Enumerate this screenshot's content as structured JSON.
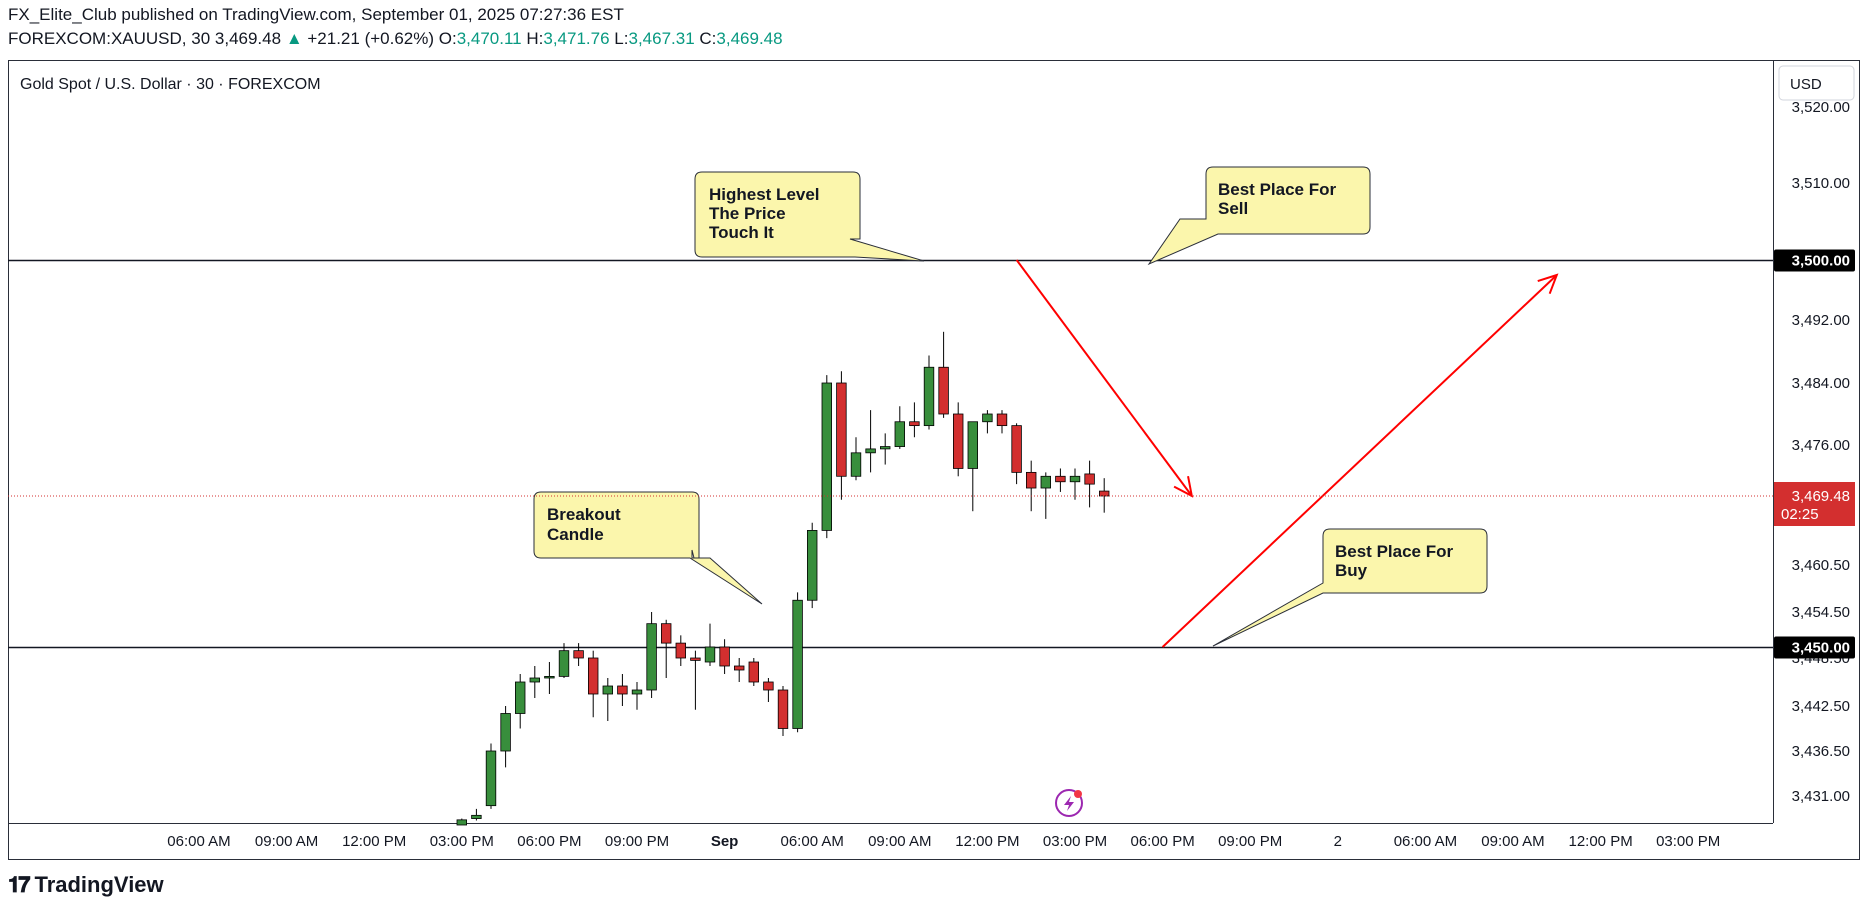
{
  "header": {
    "published_line": "FX_Elite_Club published on TradingView.com, September 01, 2025 07:27:36 EST",
    "symbol": "FOREXCOM:XAUUSD, 30",
    "last": "3,469.48",
    "change": "+21.21 (+0.62%)",
    "o_label": "O:",
    "o": "3,470.11",
    "h_label": "H:",
    "h": "3,471.76",
    "l_label": "L:",
    "l": "3,467.31",
    "c_label": "C:",
    "c": "3,469.48"
  },
  "chart_title": "Gold Spot / U.S. Dollar · 30 · FOREXCOM",
  "currency_button": "USD",
  "footer": {
    "brand": "TradingView"
  },
  "colors": {
    "up": "#388e3c",
    "down": "#d32f2f",
    "arrow": "#ff0000",
    "callout": "#fbf6ac",
    "price_tag": "#d32f2f"
  },
  "chart_data": {
    "type": "candlestick",
    "title": "Gold Spot / U.S. Dollar · 30 · FOREXCOM",
    "ylim": [
      3426.5,
      3524.5
    ],
    "y_ticks": [
      3520.0,
      3510.0,
      3492.0,
      3484.0,
      3476.0,
      3460.5,
      3454.5,
      3448.5,
      3442.5,
      3436.5,
      3431.0
    ],
    "y_tick_labels": [
      "3,520.00",
      "3,510.00",
      "3,492.00",
      "3,484.00",
      "3,476.00",
      "3,460.50",
      "3,454.50",
      "3,448.50",
      "3,442.50",
      "3,436.50",
      "3,431.00"
    ],
    "x_tick_labels": [
      "06:00 AM",
      "09:00 AM",
      "12:00 PM",
      "03:00 PM",
      "06:00 PM",
      "09:00 PM",
      "Sep",
      "06:00 AM",
      "09:00 AM",
      "12:00 PM",
      "03:00 PM",
      "06:00 PM",
      "09:00 PM",
      "2",
      "06:00 AM",
      "09:00 AM",
      "12:00 PM",
      "03:00 PM"
    ],
    "x_tick_bar_index": [
      -60,
      -54,
      -48,
      -42,
      -36,
      -30,
      -24,
      -18,
      -12,
      -6,
      0,
      6,
      12,
      18,
      24,
      30,
      36,
      42
    ],
    "candles": [
      {
        "i": -42,
        "o": 3426.5,
        "h": 3427.5,
        "l": 3426.5,
        "c": 3427.3
      },
      {
        "i": -41,
        "o": 3427.5,
        "h": 3429.0,
        "l": 3427.2,
        "c": 3428.0
      },
      {
        "i": -40,
        "o": 3429.5,
        "h": 3437.5,
        "l": 3429.0,
        "c": 3436.5
      },
      {
        "i": -39,
        "o": 3436.5,
        "h": 3442.5,
        "l": 3434.5,
        "c": 3441.5
      },
      {
        "i": -38,
        "o": 3441.5,
        "h": 3446.5,
        "l": 3439.5,
        "c": 3445.5
      },
      {
        "i": -37,
        "o": 3445.5,
        "h": 3447.5,
        "l": 3443.5,
        "c": 3446.0
      },
      {
        "i": -36,
        "o": 3446.0,
        "h": 3448.0,
        "l": 3444.0,
        "c": 3446.2
      },
      {
        "i": -35,
        "o": 3446.2,
        "h": 3450.5,
        "l": 3446.0,
        "c": 3449.5
      },
      {
        "i": -34,
        "o": 3449.5,
        "h": 3450.5,
        "l": 3447.5,
        "c": 3448.5
      },
      {
        "i": -33,
        "o": 3448.5,
        "h": 3449.5,
        "l": 3441.0,
        "c": 3444.0
      },
      {
        "i": -32,
        "o": 3444.0,
        "h": 3446.0,
        "l": 3440.5,
        "c": 3445.0
      },
      {
        "i": -31,
        "o": 3445.0,
        "h": 3446.5,
        "l": 3442.5,
        "c": 3444.0
      },
      {
        "i": -30,
        "o": 3444.0,
        "h": 3445.5,
        "l": 3442.0,
        "c": 3444.5
      },
      {
        "i": -29,
        "o": 3444.5,
        "h": 3454.5,
        "l": 3443.5,
        "c": 3453.0
      },
      {
        "i": -28,
        "o": 3453.0,
        "h": 3453.5,
        "l": 3446.0,
        "c": 3450.5
      },
      {
        "i": -27,
        "o": 3450.5,
        "h": 3451.5,
        "l": 3447.5,
        "c": 3448.5
      },
      {
        "i": -26,
        "o": 3448.5,
        "h": 3449.5,
        "l": 3442.0,
        "c": 3448.2
      },
      {
        "i": -25,
        "o": 3448.0,
        "h": 3453.0,
        "l": 3447.5,
        "c": 3450.0
      },
      {
        "i": -24,
        "o": 3450.0,
        "h": 3451.0,
        "l": 3446.5,
        "c": 3447.5
      },
      {
        "i": -23,
        "o": 3447.5,
        "h": 3448.5,
        "l": 3445.5,
        "c": 3447.0
      },
      {
        "i": -22,
        "o": 3448.0,
        "h": 3448.5,
        "l": 3445.0,
        "c": 3445.5
      },
      {
        "i": -21,
        "o": 3445.5,
        "h": 3446.0,
        "l": 3443.0,
        "c": 3444.5
      },
      {
        "i": -20,
        "o": 3444.5,
        "h": 3445.0,
        "l": 3438.5,
        "c": 3439.5
      },
      {
        "i": -19,
        "o": 3439.5,
        "h": 3457.0,
        "l": 3439.0,
        "c": 3456.0
      },
      {
        "i": -18,
        "o": 3456.0,
        "h": 3466.0,
        "l": 3455.0,
        "c": 3465.0
      },
      {
        "i": -17,
        "o": 3465.0,
        "h": 3485.0,
        "l": 3464.0,
        "c": 3484.0
      },
      {
        "i": -16,
        "o": 3484.0,
        "h": 3485.5,
        "l": 3469.0,
        "c": 3472.0
      },
      {
        "i": -15,
        "o": 3472.0,
        "h": 3477.0,
        "l": 3471.5,
        "c": 3475.0
      },
      {
        "i": -14,
        "o": 3475.0,
        "h": 3480.5,
        "l": 3472.5,
        "c": 3475.5
      },
      {
        "i": -13,
        "o": 3475.5,
        "h": 3477.5,
        "l": 3473.5,
        "c": 3475.8
      },
      {
        "i": -12,
        "o": 3475.8,
        "h": 3481.0,
        "l": 3475.5,
        "c": 3479.0
      },
      {
        "i": -11,
        "o": 3479.0,
        "h": 3481.5,
        "l": 3477.0,
        "c": 3478.5
      },
      {
        "i": -10,
        "o": 3478.5,
        "h": 3487.5,
        "l": 3478.0,
        "c": 3486.0
      },
      {
        "i": -9,
        "o": 3486.0,
        "h": 3490.5,
        "l": 3479.5,
        "c": 3480.0
      },
      {
        "i": -8,
        "o": 3480.0,
        "h": 3481.5,
        "l": 3472.0,
        "c": 3473.0
      },
      {
        "i": -7,
        "o": 3473.0,
        "h": 3478.5,
        "l": 3467.5,
        "c": 3479.0
      },
      {
        "i": -6,
        "o": 3479.0,
        "h": 3480.5,
        "l": 3477.5,
        "c": 3480.0
      },
      {
        "i": -5,
        "o": 3480.0,
        "h": 3480.5,
        "l": 3477.5,
        "c": 3478.5
      },
      {
        "i": -4,
        "o": 3478.5,
        "h": 3478.8,
        "l": 3471.0,
        "c": 3472.5
      },
      {
        "i": -3,
        "o": 3472.5,
        "h": 3474.0,
        "l": 3467.5,
        "c": 3470.5
      },
      {
        "i": -2,
        "o": 3470.5,
        "h": 3472.5,
        "l": 3466.5,
        "c": 3472.0
      },
      {
        "i": -1,
        "o": 3472.0,
        "h": 3473.0,
        "l": 3470.0,
        "c": 3471.3
      },
      {
        "i": 0,
        "o": 3471.3,
        "h": 3473.0,
        "l": 3469.0,
        "c": 3472.0
      },
      {
        "i": 1,
        "o": 3472.3,
        "h": 3474.0,
        "l": 3468.0,
        "c": 3471.0
      },
      {
        "i": 2,
        "o": 3470.11,
        "h": 3471.76,
        "l": 3467.31,
        "c": 3469.48
      }
    ],
    "last_price": {
      "value": 3469.48,
      "label": "3,469.48",
      "timer": "02:25"
    },
    "horizontal_lines": [
      {
        "value": 3500.0,
        "label": "3,500.00"
      },
      {
        "value": 3450.0,
        "label": "3,450.00"
      }
    ],
    "callouts": [
      {
        "lines": [
          "Highest Level",
          "The Price",
          "Touch It"
        ]
      },
      {
        "lines": [
          "Best Place For",
          "Sell"
        ]
      },
      {
        "lines": [
          "Breakout",
          "Candle"
        ]
      },
      {
        "lines": [
          "Best Place For",
          "Buy"
        ]
      }
    ],
    "arrows": [
      {
        "from": {
          "i": -4,
          "v": 3500.0
        },
        "to": {
          "i": 8,
          "v": 3469.5
        }
      },
      {
        "from": {
          "i": 6,
          "v": 3450.0
        },
        "to": {
          "i": 33,
          "v": 3498.0
        }
      }
    ]
  }
}
